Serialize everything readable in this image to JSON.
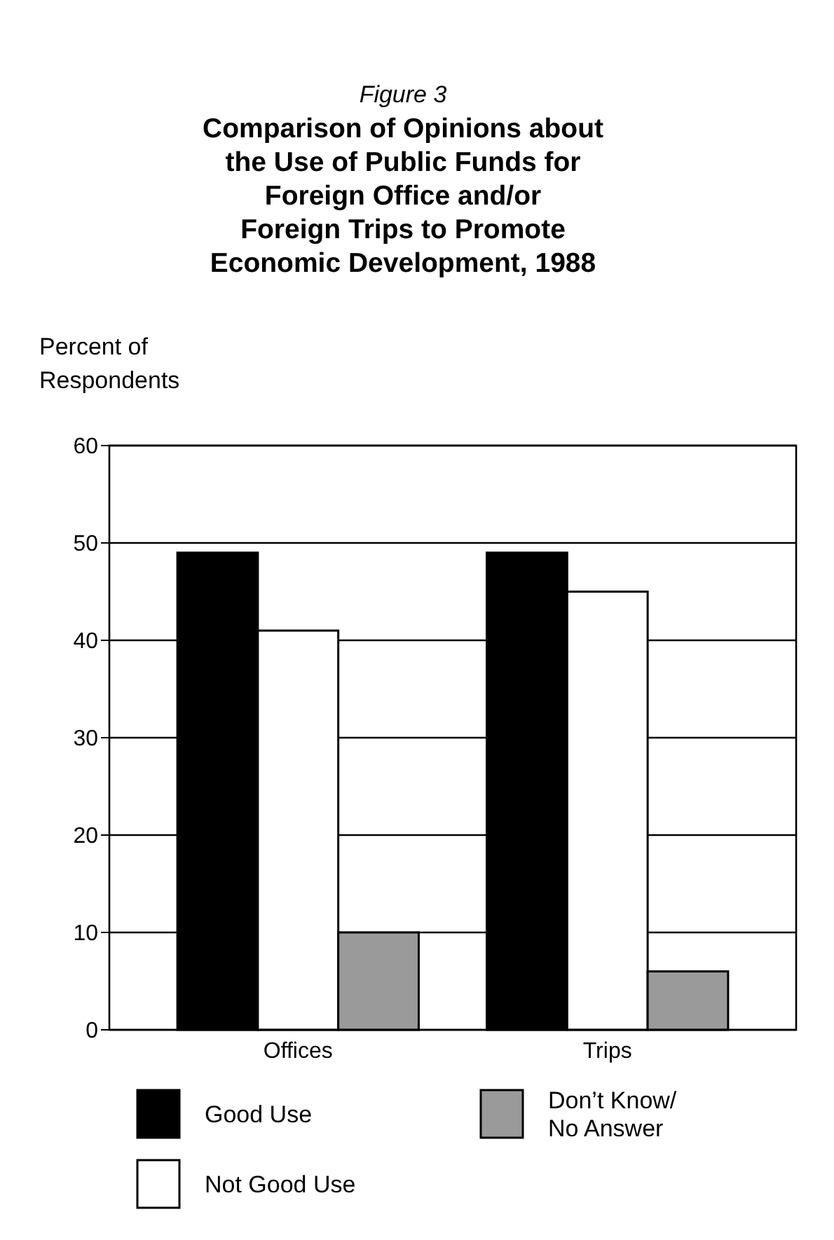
{
  "chart_data": {
    "type": "bar",
    "subtitle": "Figure 3",
    "title": "Comparison of Opinions about the Use of Public Funds for Foreign Office and/or Foreign Trips to Promote Economic Development, 1988",
    "ylabel": "Percent of Respondents",
    "categories": [
      "Offices",
      "Trips"
    ],
    "series": [
      {
        "name": "Good Use",
        "color": "#000000",
        "values": [
          49,
          49
        ]
      },
      {
        "name": "Not Good Use",
        "color": "#ffffff",
        "values": [
          41,
          45
        ]
      },
      {
        "name": "Don’t Know/ No Answer",
        "color": "#9a9a9a",
        "values": [
          10,
          6
        ]
      }
    ],
    "ylim": [
      0,
      60
    ],
    "yticks": [
      0,
      10,
      20,
      30,
      40,
      50,
      60
    ],
    "grid": "y",
    "legend": "bottom"
  }
}
